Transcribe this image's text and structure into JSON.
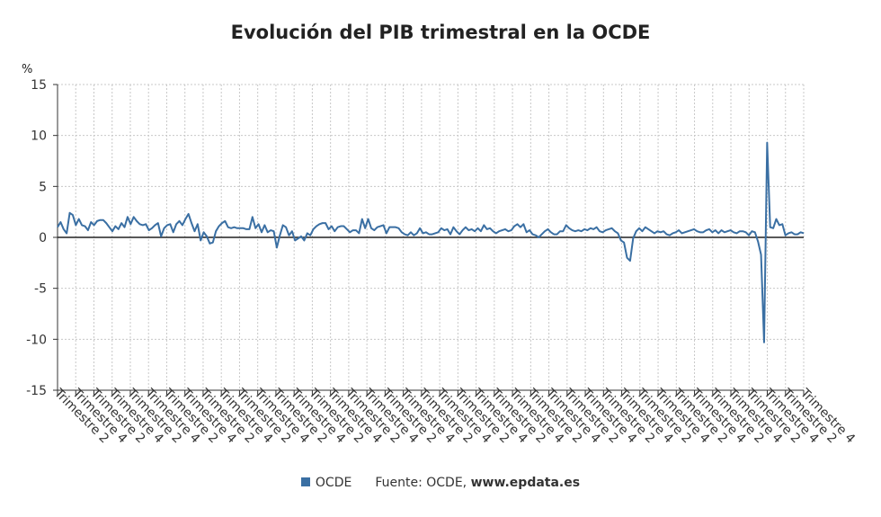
{
  "chart_data": {
    "type": "line",
    "title": "Evolución del PIB trimestral en la OCDE",
    "ylabel": "%",
    "ylim": [
      -15,
      15
    ],
    "y_ticks": [
      15,
      10,
      5,
      0,
      -5,
      -10,
      -15
    ],
    "x_tick_labels": [
      "Trimestre 2",
      "Trimestre 4"
    ],
    "grid": true,
    "legend_position": "bottom",
    "series_color": "#3a6fa3",
    "series": [
      {
        "name": "OCDE",
        "values": [
          1.0,
          1.5,
          0.8,
          0.4,
          2.4,
          2.2,
          1.2,
          1.8,
          1.2,
          1.1,
          0.7,
          1.5,
          1.2,
          1.6,
          1.7,
          1.7,
          1.4,
          1.0,
          0.6,
          1.1,
          0.8,
          1.4,
          1.0,
          2.0,
          1.3,
          2.0,
          1.6,
          1.3,
          1.2,
          1.3,
          0.7,
          0.9,
          1.2,
          1.4,
          0.1,
          0.9,
          1.2,
          1.3,
          0.5,
          1.3,
          1.6,
          1.2,
          1.8,
          2.3,
          1.4,
          0.6,
          1.3,
          -0.3,
          0.5,
          0.1,
          -0.6,
          -0.5,
          0.6,
          1.1,
          1.4,
          1.6,
          1.0,
          0.9,
          1.0,
          0.9,
          0.9,
          0.9,
          0.8,
          0.8,
          2.0,
          0.9,
          1.3,
          0.5,
          1.2,
          0.5,
          0.7,
          0.6,
          -1.0,
          0.2,
          1.2,
          1.0,
          0.2,
          0.6,
          -0.3,
          -0.1,
          0.1,
          -0.3,
          0.4,
          0.2,
          0.8,
          1.1,
          1.3,
          1.4,
          1.4,
          0.8,
          1.1,
          0.6,
          1.0,
          1.1,
          1.1,
          0.8,
          0.5,
          0.7,
          0.7,
          0.4,
          1.8,
          0.9,
          1.8,
          0.9,
          0.7,
          1.0,
          1.1,
          1.2,
          0.4,
          1.0,
          1.0,
          1.0,
          0.9,
          0.5,
          0.3,
          0.2,
          0.5,
          0.2,
          0.4,
          0.9,
          0.4,
          0.5,
          0.3,
          0.3,
          0.4,
          0.5,
          0.9,
          0.7,
          0.8,
          0.3,
          1.0,
          0.6,
          0.3,
          0.7,
          1.0,
          0.7,
          0.8,
          0.6,
          0.9,
          0.6,
          1.2,
          0.8,
          0.9,
          0.6,
          0.4,
          0.6,
          0.7,
          0.8,
          0.6,
          0.7,
          1.1,
          1.3,
          1.0,
          1.3,
          0.5,
          0.7,
          0.3,
          0.2,
          0.0,
          0.3,
          0.6,
          0.8,
          0.5,
          0.3,
          0.3,
          0.6,
          0.6,
          1.2,
          0.9,
          0.7,
          0.6,
          0.7,
          0.6,
          0.8,
          0.7,
          0.9,
          0.8,
          1.0,
          0.6,
          0.5,
          0.7,
          0.8,
          0.9,
          0.6,
          0.4,
          -0.3,
          -0.5,
          -2.0,
          -2.3,
          -0.1,
          0.6,
          0.9,
          0.6,
          1.0,
          0.8,
          0.6,
          0.4,
          0.6,
          0.5,
          0.6,
          0.3,
          0.2,
          0.4,
          0.5,
          0.7,
          0.4,
          0.5,
          0.6,
          0.7,
          0.8,
          0.6,
          0.5,
          0.5,
          0.7,
          0.8,
          0.5,
          0.7,
          0.4,
          0.7,
          0.5,
          0.6,
          0.7,
          0.5,
          0.4,
          0.6,
          0.6,
          0.5,
          0.2,
          0.6,
          0.5,
          -0.4,
          -1.7,
          -10.3,
          9.3,
          1.0,
          0.9,
          1.8,
          1.2,
          1.3,
          0.2,
          0.4,
          0.5,
          0.3,
          0.3,
          0.5,
          0.4
        ]
      }
    ]
  },
  "legend": {
    "items": [
      {
        "label": "OCDE",
        "color": "#3a6fa3"
      }
    ]
  },
  "source": {
    "prefix": "Fuente: OCDE,",
    "site": "www.epdata.es"
  }
}
